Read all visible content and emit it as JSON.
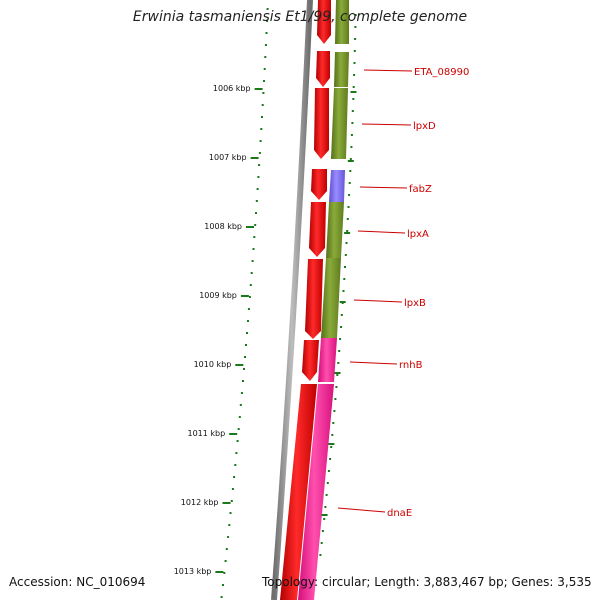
{
  "title": "Erwinia tasmaniensis Et1/99, complete genome",
  "accession": "Accession: NC_010694",
  "topology": "Topology: circular; Length: 3,883,467 bp; Genes: 3,535",
  "kbp_labels": [
    "1006 kbp",
    "1007 kbp",
    "1008 kbp",
    "1009 kbp",
    "1010 kbp",
    "1011 kbp",
    "1012 kbp",
    "1013 kbp"
  ],
  "genes": [
    {
      "name": "ETA_08990",
      "category": "Cell envelope",
      "color": "#6b8e23"
    },
    {
      "name": "lpxD",
      "category": "Cell envelope",
      "color": "#6b8e23"
    },
    {
      "name": "fabZ",
      "category": "Lipid metabolism",
      "color": "#7b68ee"
    },
    {
      "name": "lpxA",
      "category": "Cell envelope",
      "color": "#6b8e23"
    },
    {
      "name": "lpxB",
      "category": "Cell envelope",
      "color": "#6b8e23"
    },
    {
      "name": "rnhB",
      "category": "DNA metabolism",
      "color": "#ff1493"
    },
    {
      "name": "dnaE",
      "category": "DNA metabolism",
      "color": "#ff1493"
    }
  ],
  "colors": {
    "strand": "#ff0000",
    "label": "#cc0000",
    "tick": "#1a7a1a",
    "backbone": "#808080",
    "cell_envelope": "#6b8e23",
    "lipid": "#7b68ee",
    "dna": "#ff1493"
  }
}
